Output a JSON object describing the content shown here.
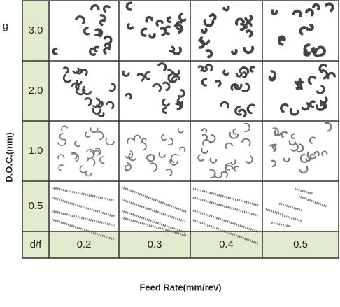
{
  "side_label": "g",
  "y_axis_label": "D.O.C.(mm)",
  "x_axis_label": "Feed Rate(mm/rev)",
  "table": {
    "row_labels": [
      "3.0",
      "2.0",
      "1.0",
      "0.5"
    ],
    "corner": "d/f",
    "column_labels": [
      "0.2",
      "0.3",
      "0.4",
      "0.5"
    ]
  }
}
